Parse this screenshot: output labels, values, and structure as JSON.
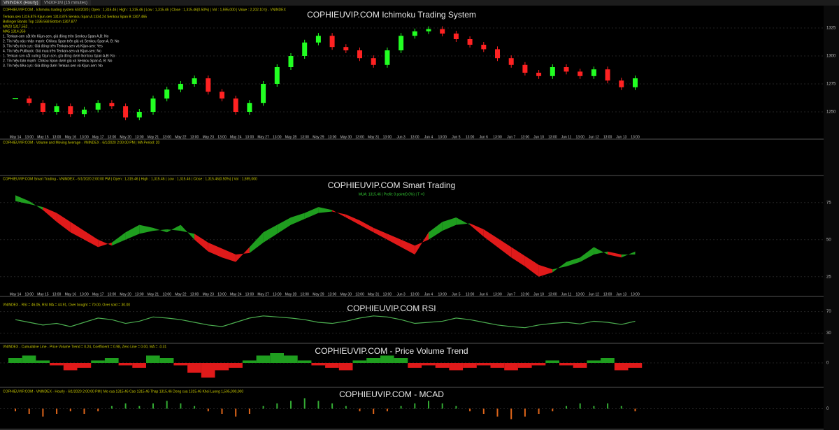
{
  "tabs": [
    "VNINDEX (Hourly)",
    "VN30F1M (15 minutes)"
  ],
  "x_labels": [
    "May 14",
    "13:00",
    "May 15",
    "13:00",
    "May 16",
    "13:00",
    "May 17",
    "13:00",
    "May 20",
    "13:00",
    "May 21",
    "13:00",
    "May 22",
    "13:00",
    "May 23",
    "13:00",
    "May 24",
    "13:00",
    "May 27",
    "13:00",
    "May 28",
    "13:00",
    "May 29",
    "13:00",
    "May 30",
    "13:00",
    "May 31",
    "13:00",
    "Jun 3",
    "13:00",
    "Jun 4",
    "13:00",
    "Jun 5",
    "13:00",
    "Jun 6",
    "13:00",
    "Jun 7",
    "13:00",
    "Jun 10",
    "13:00",
    "Jun 11",
    "13:00",
    "Jun 12",
    "13:00",
    "Jun 13",
    "13:00"
  ],
  "panels": [
    {
      "type": "candlestick",
      "title": "COPHIEUVIP.COM Ichimoku Trading System",
      "header": "COPHIEUVIP.COM - Ichimoku trading system 6/3/2020 | Open : 1,315.46 | High : 1,315.46 | Low : 1,315.46 | Close : 1,315.46(0.50%) | Vol : 1,595,000 | Value : 2,202.10 tỷ - VNINDEX",
      "notes": [
        "Tenkan-sen 1315.875  Kijun-sen 1313.875  Senkou Span A 1334.24  Senkou Span B 1307.465",
        "Bollinger Bands Top 1336.568  Bottom 1307.877",
        "MA20 1317.552",
        "MA5 1314.356",
        "1. Tenkan-sen cắt lên Kijun-sen, giá đóng trên Senkou Span A,B: No",
        "2. Tín hiệu xác nhận mạnh: Chikou Span trên giá và Senkou Span A, B: No",
        "3. Tín hiệu tích cực: Giá đóng trên Tenkan-sen và Kijun-sen: Yes",
        "4. Tín hiệu Pullback: Giá mua trên Tenkan-sen và Kijun-sen: No",
        "1. Tenkan-sen cắt xuống Kijun-sen, giá đóng dưới Senkou Span A,B: No",
        "2. Tín hiệu bán mạnh: Chikou Span dưới giá và Senkou Span A, B: No",
        "3. Tín hiệu tiêu cực: Giá đóng dưới Tenkan-sen và Kijun-sen: No"
      ],
      "values": [
        1262,
        1258,
        1250,
        1255,
        1248,
        1252,
        1258,
        1255,
        1245,
        1250,
        1262,
        1270,
        1275,
        1280,
        1268,
        1262,
        1250,
        1258,
        1275,
        1290,
        1300,
        1312,
        1318,
        1308,
        1305,
        1298,
        1292,
        1305,
        1318,
        1322,
        1324,
        1320,
        1315,
        1310,
        1306,
        1298,
        1292,
        1285,
        1282,
        1290,
        1286,
        1282,
        1288,
        1278,
        1272,
        1280
      ],
      "ylim": [
        1230,
        1340
      ],
      "yticks": [
        1250,
        1275,
        1300,
        1325
      ]
    },
    {
      "type": "info",
      "header": "COPHIEUVIP.COM - Volume and Moving Average - VNINDEX - 6/1/2020 2:00:00 PM | MA Period: 20"
    },
    {
      "type": "cross",
      "title": "COPHIEUVIP.COM Smart Trading",
      "header": "COPHIEUVIP.COM Smart Trading - VNINDEX - 6/1/2020 2:00:00 PM | Open : 1,315.46 | High : 1,315.46 | Low : 1,315.46 | Close : 1,315.46(0.50%) | Vol : 1,595,000",
      "subheader": "MUA: 1315.46 | Profit: 0 point(0.0%) | T +0",
      "series": [
        {
          "color": "#1f9e1f",
          "values": [
            80,
            76,
            70,
            62,
            55,
            50,
            45,
            48,
            55,
            60,
            58,
            55,
            60,
            50,
            42,
            38,
            35,
            45,
            55,
            60,
            65,
            68,
            72,
            70,
            65,
            60,
            55,
            50,
            45,
            40,
            55,
            62,
            65,
            60,
            52,
            45,
            38,
            32,
            25,
            28,
            35,
            38,
            45,
            40,
            38,
            42
          ]
        },
        {
          "color": "#e01a1a",
          "values": [
            76,
            74,
            72,
            68,
            62,
            56,
            50,
            46,
            50,
            54,
            56,
            57,
            56,
            54,
            48,
            44,
            40,
            41,
            48,
            54,
            60,
            64,
            68,
            69,
            67,
            63,
            58,
            54,
            50,
            46,
            50,
            56,
            60,
            61,
            57,
            51,
            45,
            39,
            33,
            30,
            32,
            35,
            40,
            42,
            40,
            40
          ]
        }
      ],
      "ylim": [
        15,
        90
      ],
      "yticks": [
        25,
        50,
        75
      ]
    },
    {
      "type": "line",
      "title": "COPHIEUVIP.COM RSI",
      "header": "VNINDEX - RSI = 46.05, RSI MA = 44.91, Over bought = 70.00, Over sold = 30.00",
      "values": [
        55,
        50,
        45,
        48,
        42,
        50,
        58,
        55,
        48,
        52,
        60,
        58,
        55,
        50,
        45,
        42,
        50,
        58,
        62,
        60,
        58,
        55,
        50,
        48,
        52,
        58,
        62,
        60,
        55,
        48,
        50,
        52,
        58,
        55,
        50,
        45,
        42,
        40,
        45,
        48,
        50,
        47,
        52,
        50,
        46,
        52
      ],
      "color": "#4caf50",
      "ylim": [
        20,
        80
      ],
      "yticks": [
        30,
        70
      ]
    },
    {
      "type": "area",
      "title": "COPHIEUVIP.COM - Price Volume Trend",
      "header": "VNINDEX - Cumulative Line - Price Volume Trend = 0.24, Coefficient = 0.98, Zero Line = 0.00, MA = -0.31",
      "values": [
        2,
        3,
        1,
        -1,
        -3,
        -2,
        1,
        2,
        -1,
        -2,
        3,
        2,
        -1,
        -4,
        -6,
        -3,
        -2,
        1,
        3,
        4,
        3,
        1,
        -1,
        -2,
        -3,
        1,
        2,
        3,
        2,
        -2,
        -1,
        -2,
        -3,
        -2,
        -1,
        -2,
        -3,
        -2,
        -1,
        1,
        -1,
        -2,
        1,
        2,
        -3,
        -2
      ],
      "ylim": [
        -8,
        6
      ],
      "yticks": [
        0
      ]
    },
    {
      "type": "hist",
      "title": "COPHIEUVIP.COM - MCAD",
      "header": "COPHIEUVIP.COM - VNINDEX - Hourly - 6/1/2020 2:00:00 PM | Mo cua 1315.46  Cao 1315.46  Thap 1315.46  Dong cua 1315.46  Khoi Luong 1,595,000,000",
      "values": [
        -1,
        -2,
        -3,
        -2,
        -1,
        -2,
        -1,
        1,
        2,
        1,
        2,
        3,
        2,
        1,
        -1,
        -2,
        -3,
        -2,
        1,
        2,
        3,
        4,
        3,
        2,
        1,
        -1,
        -2,
        -1,
        1,
        2,
        3,
        2,
        1,
        -1,
        -2,
        -3,
        -4,
        -3,
        -2,
        -1,
        1,
        2,
        1,
        2,
        1,
        -1
      ],
      "ylim": [
        -6,
        6
      ],
      "yticks": [
        0
      ]
    }
  ]
}
